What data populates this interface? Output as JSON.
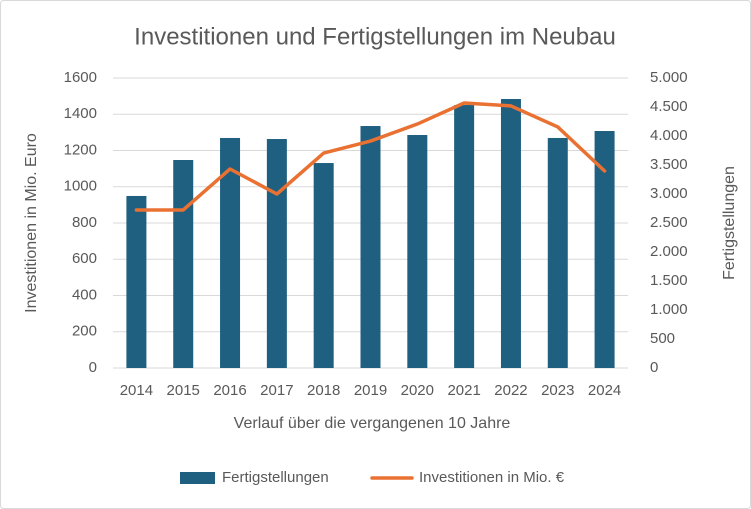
{
  "chart_data": {
    "type": "bar",
    "title": "Investitionen und Fertigstellungen im Neubau",
    "x_label": "Verlauf über die vergangenen 10 Jahre",
    "y_label": "Investitionen in Mio. Euro",
    "y2_label": "Fertigstellungen",
    "categories": [
      "2014",
      "2015",
      "2016",
      "2017",
      "2018",
      "2019",
      "2020",
      "2021",
      "2022",
      "2023",
      "2024"
    ],
    "series": [
      {
        "name": "Fertigstellungen",
        "type": "bar",
        "axis": "y2",
        "color": "#1f5f80",
        "values": [
          2966,
          3586,
          3966,
          3948,
          3534,
          4172,
          4017,
          4534,
          4638,
          3966,
          4086
        ]
      },
      {
        "name": "Investitionen in Mio. €",
        "type": "line",
        "color": "#e97132",
        "values": [
          872,
          872,
          1098,
          960,
          1186,
          1252,
          1346,
          1462,
          1446,
          1330,
          1087
        ]
      }
    ],
    "ylim": [
      0,
      1600
    ],
    "yticks": [
      0,
      200,
      400,
      600,
      800,
      1000,
      1200,
      1400,
      1600
    ],
    "y2lim": [
      0,
      5000
    ],
    "y2ticks": [
      0,
      500,
      {
        "value": 1000,
        "label": "1.000"
      },
      {
        "value": 1500,
        "label": "1.500"
      },
      {
        "value": 2000,
        "label": "2.000"
      },
      {
        "value": 2500,
        "label": "2.500"
      },
      {
        "value": 3000,
        "label": "3.000"
      },
      {
        "value": 3500,
        "label": "3.500"
      },
      {
        "value": 4000,
        "label": "4.000"
      },
      {
        "value": 4500,
        "label": "4.500"
      },
      {
        "value": 5000,
        "label": "5.000"
      }
    ],
    "grid": true,
    "legend": "bottom"
  }
}
